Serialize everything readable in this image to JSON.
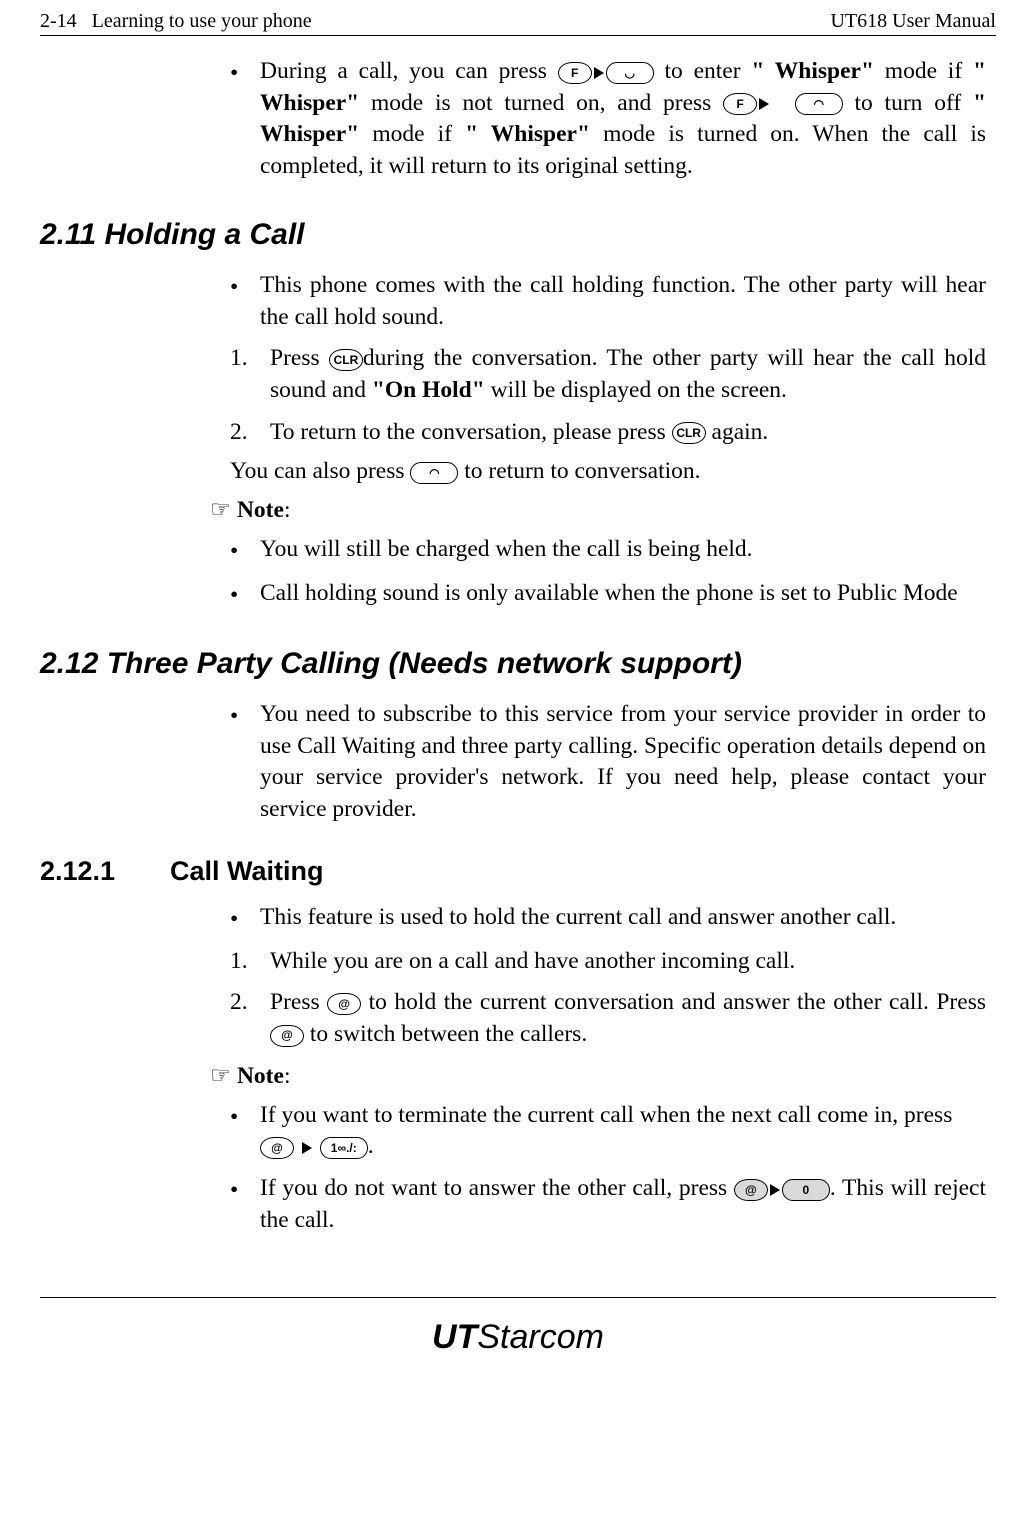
{
  "header": {
    "left_page_num": "2-14",
    "left_title": "Learning to use your phone",
    "right_title": "UT618 User Manual"
  },
  "whisper_bullet": {
    "pre": "During a call, you can press ",
    "mid1": " to enter ",
    "mode_label": "\" Whisper\"",
    "mid2": " mode if ",
    "mid3": " mode is not turned on, and press ",
    "mid4": "to turn off ",
    "mid5": " mode if ",
    "mid6": " mode is turned on. When the call is completed, it will return to its original setting."
  },
  "keys": {
    "F": "F",
    "handset_up": "◡",
    "handset_down": "◠",
    "CLR": "CLR",
    "at": "@",
    "one": "1∞./:",
    "zero": "0"
  },
  "sec_211": {
    "title": "2.11 Holding a Call",
    "b1": "This phone comes with the call holding function. The other party will hear the call hold sound.",
    "n1_pre": "Press ",
    "n1_post": "during the conversation. The other party will hear the call hold sound and ",
    "on_hold": "\"On Hold\"",
    "n1_end": " will be displayed on the screen.",
    "n2_pre": "To return to the conversation, please press ",
    "n2_post": " again.",
    "also_pre": "You can also press ",
    "also_post": " to return to conversation.",
    "note_label": "Note",
    "note_b1": "You will still be charged when the call is being held.",
    "note_b2": "Call holding sound is only available when the phone is set to Public Mode"
  },
  "sec_212": {
    "title": "2.12 Three Party Calling (Needs network support)",
    "b1": "You need to subscribe to this service from your service provider in order to use Call Waiting and three party calling. Specific operation details depend on your service provider's network. If you need help, please contact your service provider."
  },
  "sec_2121": {
    "num": "2.12.1",
    "title": "Call Waiting",
    "b1": "This feature is used to hold the current call and answer another call.",
    "n1": "While you are on a call and have another incoming call.",
    "n2_pre": "Press ",
    "n2_mid": " to hold the current conversation and answer the other call. Press ",
    "n2_post": " to switch between the callers.",
    "note_label": "Note",
    "nb1_pre": "If you want to terminate the current call when the next call come in, press ",
    "nb1_post": ".",
    "nb2_pre": "If you do not want to answer the other call, press ",
    "nb2_post": ". This will reject the call."
  },
  "logo": {
    "ut": "UT",
    "star": "Starcom"
  }
}
